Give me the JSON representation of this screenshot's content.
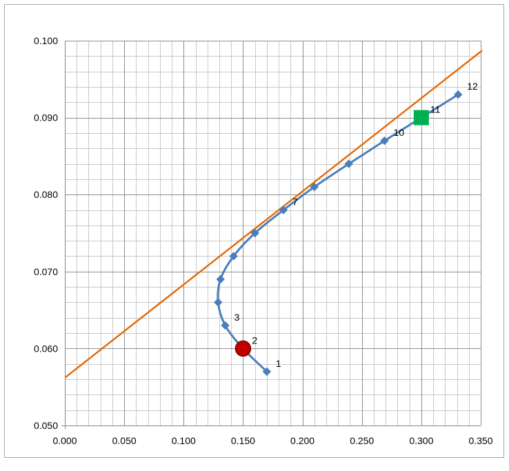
{
  "chart_data": {
    "type": "scatter",
    "title": "",
    "xlabel": "",
    "ylabel": "",
    "xlim": [
      0.0,
      0.35
    ],
    "ylim": [
      0.05,
      0.1
    ],
    "x_ticks": [
      "0.000",
      "0.050",
      "0.100",
      "0.150",
      "0.200",
      "0.250",
      "0.300",
      "0.350"
    ],
    "y_ticks": [
      "0.050",
      "0.060",
      "0.070",
      "0.080",
      "0.090",
      "0.100"
    ],
    "grid": true,
    "legend": "none",
    "series": [
      {
        "kind": "smooth-line-with-diamond-markers",
        "color": "#4a7ebb",
        "points": [
          {
            "x": 0.17,
            "y": 0.057,
            "label": "1"
          },
          {
            "x": 0.15,
            "y": 0.06,
            "label": "2"
          },
          {
            "x": 0.135,
            "y": 0.063,
            "label": "3"
          },
          {
            "x": 0.129,
            "y": 0.066,
            "label": ""
          },
          {
            "x": 0.131,
            "y": 0.069,
            "label": ""
          },
          {
            "x": 0.142,
            "y": 0.072,
            "label": ""
          },
          {
            "x": 0.16,
            "y": 0.075,
            "label": ""
          },
          {
            "x": 0.184,
            "y": 0.078,
            "label": "7"
          },
          {
            "x": 0.21,
            "y": 0.081,
            "label": ""
          },
          {
            "x": 0.239,
            "y": 0.084,
            "label": ""
          },
          {
            "x": 0.269,
            "y": 0.087,
            "label": "10"
          },
          {
            "x": 0.3,
            "y": 0.09,
            "label": "11"
          },
          {
            "x": 0.331,
            "y": 0.093,
            "label": "12"
          }
        ]
      },
      {
        "kind": "straight-line",
        "color": "#e46c0a",
        "points": [
          {
            "x": 0.0,
            "y": 0.0562
          },
          {
            "x": 0.35,
            "y": 0.0987
          }
        ]
      },
      {
        "kind": "highlight-circle",
        "color": "#c00000",
        "points": [
          {
            "x": 0.15,
            "y": 0.06
          }
        ]
      },
      {
        "kind": "highlight-square",
        "color": "#00b050",
        "points": [
          {
            "x": 0.3,
            "y": 0.09
          }
        ]
      }
    ]
  }
}
